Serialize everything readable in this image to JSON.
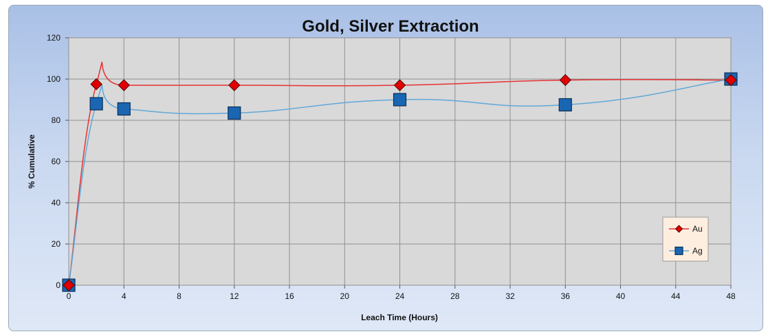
{
  "chart_data": {
    "type": "line",
    "title": "Gold, Silver Extraction",
    "xlabel": "Leach Time (Hours)",
    "ylabel": "% Cumulative",
    "xlim": [
      0,
      48
    ],
    "ylim": [
      0,
      120
    ],
    "x_ticks": [
      "0",
      "4",
      "8",
      "12",
      "16",
      "20",
      "24",
      "28",
      "32",
      "36",
      "40",
      "44",
      "48"
    ],
    "y_ticks": [
      "0",
      "20",
      "40",
      "60",
      "80",
      "100",
      "120"
    ],
    "grid": true,
    "legend_position": "right",
    "series": [
      {
        "name": "Au",
        "color": "#e83030",
        "marker": "diamond",
        "marker_color": "#e00000",
        "points": [
          {
            "x": 0,
            "y": 0
          },
          {
            "x": 2,
            "y": 97.5
          },
          {
            "x": 4,
            "y": 97
          },
          {
            "x": 12,
            "y": 97
          },
          {
            "x": 24,
            "y": 97
          },
          {
            "x": 36,
            "y": 99.5
          },
          {
            "x": 48,
            "y": 99.5
          }
        ]
      },
      {
        "name": "Ag",
        "color": "#5fa8d8",
        "marker": "square",
        "marker_color": "#1a66b3",
        "points": [
          {
            "x": 0,
            "y": 0
          },
          {
            "x": 2,
            "y": 88
          },
          {
            "x": 4,
            "y": 85.5
          },
          {
            "x": 12,
            "y": 83.5
          },
          {
            "x": 24,
            "y": 90
          },
          {
            "x": 36,
            "y": 87.5
          },
          {
            "x": 48,
            "y": 100
          }
        ]
      }
    ]
  }
}
